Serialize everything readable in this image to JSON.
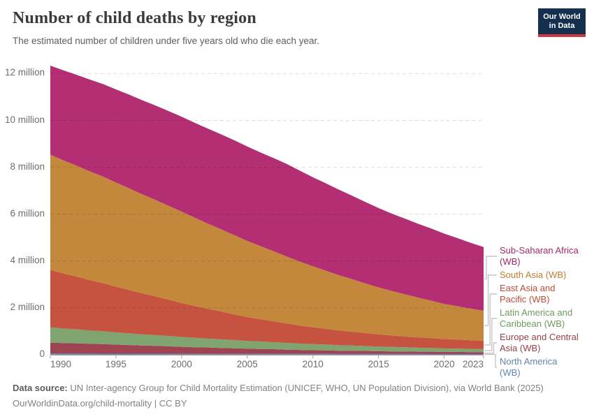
{
  "header": {
    "title": "Number of child deaths by region",
    "subtitle": "The estimated number of children under five years old who die each year.",
    "logo": {
      "line1": "Our World",
      "line2": "in Data",
      "bg_color": "#14304e",
      "accent_color": "#cf3741"
    }
  },
  "chart_data": {
    "type": "area",
    "stacked": true,
    "title": "Number of child deaths by region",
    "xlabel": "",
    "ylabel": "",
    "grid": "dashed-horizontal",
    "legend_position": "right-of-plot",
    "xlim": [
      1990,
      2023
    ],
    "ylim": [
      0,
      12.33
    ],
    "x": [
      1990,
      1991,
      1992,
      1993,
      1994,
      1995,
      1996,
      1997,
      1998,
      1999,
      2000,
      2001,
      2002,
      2003,
      2004,
      2005,
      2006,
      2007,
      2008,
      2009,
      2010,
      2011,
      2012,
      2013,
      2014,
      2015,
      2016,
      2017,
      2018,
      2019,
      2020,
      2021,
      2022,
      2023
    ],
    "x_ticks": [
      1990,
      1995,
      2000,
      2005,
      2010,
      2015,
      2020,
      2023
    ],
    "y_ticks": [
      {
        "value": 0,
        "label": "0"
      },
      {
        "value": 2,
        "label": "2 million"
      },
      {
        "value": 4,
        "label": "4 million"
      },
      {
        "value": 6,
        "label": "6 million"
      },
      {
        "value": 8,
        "label": "8 million"
      },
      {
        "value": 10,
        "label": "10 million"
      },
      {
        "value": 12,
        "label": "12 million"
      }
    ],
    "unit": "child deaths per year (millions)",
    "series": [
      {
        "name": "Sub-Saharan Africa (WB)",
        "label_lines": [
          "Sub-Saharan Africa",
          "(WB)"
        ],
        "color": "#b32e72",
        "text_color": "#a12965",
        "values": [
          3.8,
          3.84,
          3.88,
          3.92,
          3.95,
          3.97,
          4.0,
          4.01,
          4.03,
          4.04,
          4.05,
          4.05,
          4.05,
          4.05,
          4.05,
          4.03,
          4.0,
          3.98,
          3.95,
          3.88,
          3.8,
          3.73,
          3.65,
          3.56,
          3.48,
          3.39,
          3.3,
          3.23,
          3.15,
          3.08,
          3.0,
          2.91,
          2.81,
          2.72
        ]
      },
      {
        "name": "South Asia (WB)",
        "label_lines": [
          "South Asia (WB)"
        ],
        "color": "#c4883c",
        "text_color": "#c07e2e",
        "values": [
          4.92,
          4.83,
          4.73,
          4.64,
          4.55,
          4.45,
          4.34,
          4.23,
          4.12,
          4.01,
          3.9,
          3.77,
          3.64,
          3.51,
          3.38,
          3.25,
          3.12,
          2.99,
          2.86,
          2.73,
          2.6,
          2.48,
          2.36,
          2.24,
          2.12,
          2.0,
          1.9,
          1.8,
          1.7,
          1.6,
          1.5,
          1.42,
          1.35,
          1.28
        ]
      },
      {
        "name": "East Asia and Pacific (WB)",
        "label_lines": [
          "East Asia and",
          "Pacific (WB)"
        ],
        "color": "#c5533f",
        "text_color": "#bd4c37",
        "values": [
          2.45,
          2.35,
          2.25,
          2.15,
          2.05,
          1.95,
          1.85,
          1.75,
          1.65,
          1.55,
          1.45,
          1.36,
          1.27,
          1.19,
          1.1,
          1.02,
          0.95,
          0.89,
          0.83,
          0.77,
          0.72,
          0.67,
          0.63,
          0.59,
          0.55,
          0.52,
          0.49,
          0.46,
          0.44,
          0.42,
          0.4,
          0.39,
          0.37,
          0.36
        ]
      },
      {
        "name": "Latin America and Caribbean (WB)",
        "label_lines": [
          "Latin America and",
          "Caribbean (WB)"
        ],
        "color": "#7fa470",
        "text_color": "#6d9a5d",
        "values": [
          0.65,
          0.62,
          0.6,
          0.57,
          0.55,
          0.52,
          0.5,
          0.48,
          0.46,
          0.44,
          0.42,
          0.4,
          0.38,
          0.37,
          0.35,
          0.33,
          0.32,
          0.3,
          0.29,
          0.27,
          0.26,
          0.25,
          0.23,
          0.22,
          0.21,
          0.2,
          0.19,
          0.18,
          0.17,
          0.16,
          0.15,
          0.14,
          0.14,
          0.13
        ]
      },
      {
        "name": "Europe and Central Asia (WB)",
        "label_lines": [
          "Europe and Central",
          "Asia (WB)"
        ],
        "color": "#9e4351",
        "text_color": "#99404e",
        "values": [
          0.47,
          0.45,
          0.44,
          0.42,
          0.41,
          0.39,
          0.37,
          0.35,
          0.34,
          0.32,
          0.3,
          0.28,
          0.27,
          0.25,
          0.24,
          0.22,
          0.21,
          0.2,
          0.18,
          0.17,
          0.16,
          0.15,
          0.14,
          0.14,
          0.13,
          0.12,
          0.11,
          0.11,
          0.1,
          0.1,
          0.09,
          0.09,
          0.08,
          0.08
        ]
      },
      {
        "name": "North America (WB)",
        "label_lines": [
          "North America",
          "(WB)"
        ],
        "color": "#6c8bb5",
        "text_color": "#6283ad",
        "values": [
          0.05,
          0.049,
          0.048,
          0.047,
          0.046,
          0.045,
          0.044,
          0.043,
          0.042,
          0.041,
          0.04,
          0.04,
          0.039,
          0.039,
          0.038,
          0.038,
          0.037,
          0.037,
          0.036,
          0.036,
          0.035,
          0.035,
          0.034,
          0.034,
          0.033,
          0.033,
          0.033,
          0.032,
          0.032,
          0.031,
          0.031,
          0.031,
          0.03,
          0.03
        ]
      }
    ]
  },
  "footer": {
    "source_label": "Data source:",
    "source_text": " UN Inter-agency Group for Child Mortality Estimation (UNICEF, WHO, UN Population Division), via World Bank (2025)",
    "url_line": "OurWorldinData.org/child-mortality | CC BY"
  }
}
